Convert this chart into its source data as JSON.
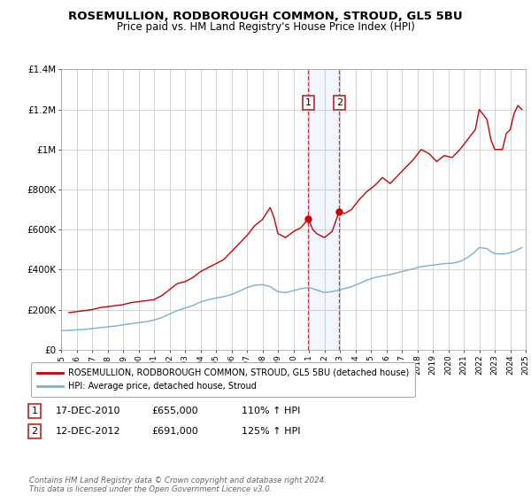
{
  "title": "ROSEMULLION, RODBOROUGH COMMON, STROUD, GL5 5BU",
  "subtitle": "Price paid vs. HM Land Registry's House Price Index (HPI)",
  "background_color": "#ffffff",
  "plot_bg_color": "#ffffff",
  "grid_color": "#cccccc",
  "red_line_color": "#cc0000",
  "blue_line_color": "#7aaed6",
  "marker1_date": 2010.96,
  "marker2_date": 2012.96,
  "marker1_value": 655000,
  "marker2_value": 691000,
  "vline1_x": 2010.96,
  "vline2_x": 2012.96,
  "shade_alpha": 0.15,
  "xmin": 1995,
  "xmax": 2025,
  "ymin": 0,
  "ymax": 1400000,
  "yticks": [
    0,
    200000,
    400000,
    600000,
    800000,
    1000000,
    1200000,
    1400000
  ],
  "ytick_labels": [
    "£0",
    "£200K",
    "£400K",
    "£600K",
    "£800K",
    "£1M",
    "£1.2M",
    "£1.4M"
  ],
  "legend_label_red": "ROSEMULLION, RODBOROUGH COMMON, STROUD, GL5 5BU (detached house)",
  "legend_label_blue": "HPI: Average price, detached house, Stroud",
  "footer": "Contains HM Land Registry data © Crown copyright and database right 2024.\nThis data is licensed under the Open Government Licence v3.0.",
  "red_data": [
    [
      1995.5,
      185000
    ],
    [
      1996.0,
      190000
    ],
    [
      1996.5,
      195000
    ],
    [
      1997.0,
      200000
    ],
    [
      1997.5,
      210000
    ],
    [
      1998.0,
      215000
    ],
    [
      1998.5,
      220000
    ],
    [
      1999.0,
      225000
    ],
    [
      1999.5,
      235000
    ],
    [
      2000.0,
      240000
    ],
    [
      2000.5,
      245000
    ],
    [
      2001.0,
      250000
    ],
    [
      2001.5,
      270000
    ],
    [
      2002.0,
      300000
    ],
    [
      2002.5,
      330000
    ],
    [
      2003.0,
      340000
    ],
    [
      2003.5,
      360000
    ],
    [
      2004.0,
      390000
    ],
    [
      2004.5,
      410000
    ],
    [
      2005.0,
      430000
    ],
    [
      2005.5,
      450000
    ],
    [
      2006.0,
      490000
    ],
    [
      2006.5,
      530000
    ],
    [
      2007.0,
      570000
    ],
    [
      2007.5,
      620000
    ],
    [
      2008.0,
      650000
    ],
    [
      2008.5,
      710000
    ],
    [
      2008.75,
      660000
    ],
    [
      2009.0,
      580000
    ],
    [
      2009.5,
      560000
    ],
    [
      2010.0,
      590000
    ],
    [
      2010.5,
      610000
    ],
    [
      2010.96,
      655000
    ],
    [
      2011.25,
      600000
    ],
    [
      2011.5,
      580000
    ],
    [
      2011.75,
      570000
    ],
    [
      2012.0,
      560000
    ],
    [
      2012.5,
      590000
    ],
    [
      2012.96,
      691000
    ],
    [
      2013.3,
      680000
    ],
    [
      2013.75,
      700000
    ],
    [
      2014.25,
      750000
    ],
    [
      2014.75,
      790000
    ],
    [
      2015.25,
      820000
    ],
    [
      2015.75,
      860000
    ],
    [
      2016.25,
      830000
    ],
    [
      2016.75,
      870000
    ],
    [
      2017.25,
      910000
    ],
    [
      2017.75,
      950000
    ],
    [
      2018.25,
      1000000
    ],
    [
      2018.75,
      980000
    ],
    [
      2019.25,
      940000
    ],
    [
      2019.75,
      970000
    ],
    [
      2020.25,
      960000
    ],
    [
      2020.75,
      1000000
    ],
    [
      2021.25,
      1050000
    ],
    [
      2021.75,
      1100000
    ],
    [
      2022.0,
      1200000
    ],
    [
      2022.5,
      1150000
    ],
    [
      2022.75,
      1050000
    ],
    [
      2023.0,
      1000000
    ],
    [
      2023.5,
      1000000
    ],
    [
      2023.75,
      1080000
    ],
    [
      2024.0,
      1100000
    ],
    [
      2024.25,
      1180000
    ],
    [
      2024.5,
      1220000
    ],
    [
      2024.75,
      1200000
    ]
  ],
  "blue_data": [
    [
      1995.0,
      95000
    ],
    [
      1995.5,
      97000
    ],
    [
      1996.0,
      99000
    ],
    [
      1996.5,
      101000
    ],
    [
      1997.0,
      105000
    ],
    [
      1997.5,
      110000
    ],
    [
      1998.0,
      114000
    ],
    [
      1998.5,
      118000
    ],
    [
      1999.0,
      124000
    ],
    [
      1999.5,
      130000
    ],
    [
      2000.0,
      135000
    ],
    [
      2000.5,
      140000
    ],
    [
      2001.0,
      148000
    ],
    [
      2001.5,
      160000
    ],
    [
      2002.0,
      178000
    ],
    [
      2002.5,
      195000
    ],
    [
      2003.0,
      208000
    ],
    [
      2003.5,
      220000
    ],
    [
      2004.0,
      238000
    ],
    [
      2004.5,
      250000
    ],
    [
      2005.0,
      258000
    ],
    [
      2005.5,
      265000
    ],
    [
      2006.0,
      275000
    ],
    [
      2006.5,
      292000
    ],
    [
      2007.0,
      310000
    ],
    [
      2007.5,
      322000
    ],
    [
      2008.0,
      325000
    ],
    [
      2008.5,
      315000
    ],
    [
      2009.0,
      290000
    ],
    [
      2009.5,
      285000
    ],
    [
      2010.0,
      295000
    ],
    [
      2010.5,
      305000
    ],
    [
      2010.96,
      310000
    ],
    [
      2011.25,
      305000
    ],
    [
      2011.5,
      298000
    ],
    [
      2011.75,
      292000
    ],
    [
      2012.0,
      285000
    ],
    [
      2012.5,
      290000
    ],
    [
      2012.96,
      298000
    ],
    [
      2013.3,
      305000
    ],
    [
      2013.75,
      315000
    ],
    [
      2014.25,
      330000
    ],
    [
      2014.75,
      348000
    ],
    [
      2015.25,
      360000
    ],
    [
      2015.75,
      368000
    ],
    [
      2016.25,
      375000
    ],
    [
      2016.75,
      385000
    ],
    [
      2017.25,
      395000
    ],
    [
      2017.75,
      405000
    ],
    [
      2018.25,
      415000
    ],
    [
      2018.75,
      420000
    ],
    [
      2019.25,
      425000
    ],
    [
      2019.75,
      430000
    ],
    [
      2020.25,
      432000
    ],
    [
      2020.75,
      440000
    ],
    [
      2021.25,
      460000
    ],
    [
      2021.75,
      490000
    ],
    [
      2022.0,
      510000
    ],
    [
      2022.5,
      505000
    ],
    [
      2022.75,
      490000
    ],
    [
      2023.0,
      480000
    ],
    [
      2023.5,
      478000
    ],
    [
      2023.75,
      480000
    ],
    [
      2024.0,
      485000
    ],
    [
      2024.25,
      490000
    ],
    [
      2024.5,
      500000
    ],
    [
      2024.75,
      510000
    ]
  ]
}
